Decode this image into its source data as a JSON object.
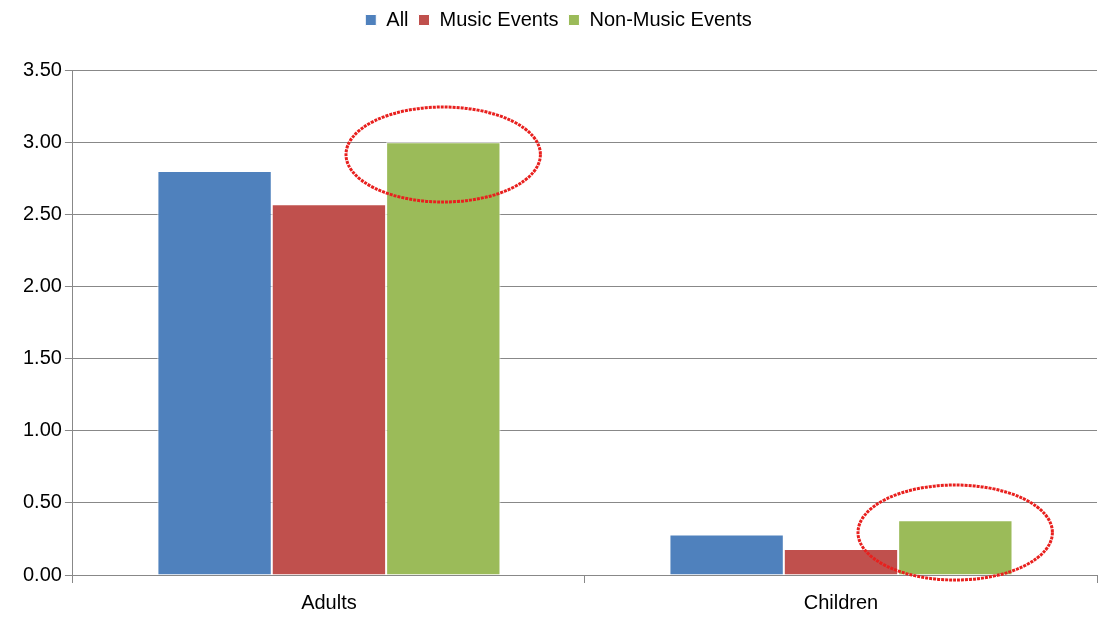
{
  "chart_data": {
    "type": "bar",
    "categories": [
      "Adults",
      "Children"
    ],
    "series": [
      {
        "name": "All",
        "color": "#4f81bd",
        "values": [
          2.8,
          0.28
        ]
      },
      {
        "name": "Music Events",
        "color": "#c0504d",
        "values": [
          2.57,
          0.18
        ]
      },
      {
        "name": "Non-Music Events",
        "color": "#9bbb59",
        "values": [
          3.0,
          0.38
        ]
      }
    ],
    "ylim": [
      0,
      3.5
    ],
    "yticks": [
      {
        "value": 0,
        "label": "0.00"
      },
      {
        "value": 0.5,
        "label": "0.50"
      },
      {
        "value": 1,
        "label": "1.00"
      },
      {
        "value": 1.5,
        "label": "1.50"
      },
      {
        "value": 2,
        "label": "2.00"
      },
      {
        "value": 2.5,
        "label": "2.50"
      },
      {
        "value": 3,
        "label": "3.00"
      },
      {
        "value": 3.5,
        "label": "3.50"
      }
    ],
    "grid": "y",
    "legend": "top"
  }
}
